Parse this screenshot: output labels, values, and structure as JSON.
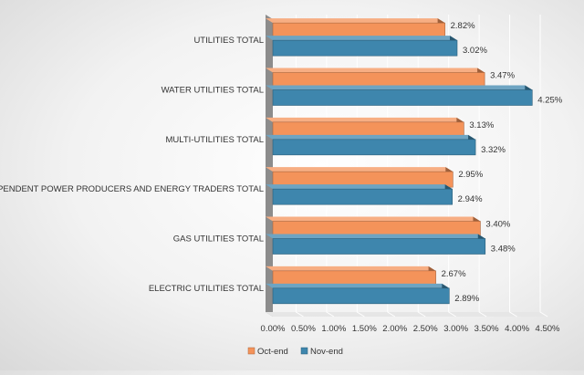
{
  "chart_data": {
    "type": "bar",
    "orientation": "horizontal",
    "categories": [
      "UTILITIES TOTAL",
      "WATER UTILITIES TOTAL",
      "MULTI-UTILITIES TOTAL",
      "INDEPENDENT POWER PRODUCERS AND ENERGY TRADERS TOTAL",
      "GAS UTILITIES TOTAL",
      "ELECTRIC UTILITIES TOTAL"
    ],
    "series": [
      {
        "name": "Oct-end",
        "color": "#f4935a",
        "values": [
          2.82,
          3.47,
          3.13,
          2.95,
          3.4,
          2.67
        ],
        "labels": [
          "2.82%",
          "3.47%",
          "3.13%",
          "2.95%",
          "3.40%",
          "2.67%"
        ]
      },
      {
        "name": "Nov-end",
        "color": "#3e86ad",
        "values": [
          3.02,
          4.25,
          3.32,
          2.94,
          3.48,
          2.89
        ],
        "labels": [
          "3.02%",
          "4.25%",
          "3.32%",
          "2.94%",
          "3.48%",
          "2.89%"
        ]
      }
    ],
    "xlim": [
      0,
      4.5
    ],
    "xticks": [
      0,
      0.5,
      1,
      1.5,
      2,
      2.5,
      3,
      3.5,
      4,
      4.5
    ],
    "xtick_labels": [
      "0.00%",
      "0.50%",
      "1.00%",
      "1.50%",
      "2.00%",
      "2.50%",
      "3.00%",
      "3.50%",
      "4.00%",
      "4.50%"
    ],
    "legend": [
      "Oct-end",
      "Nov-end"
    ],
    "legend_position": "bottom",
    "grid": true,
    "style": "3d"
  }
}
